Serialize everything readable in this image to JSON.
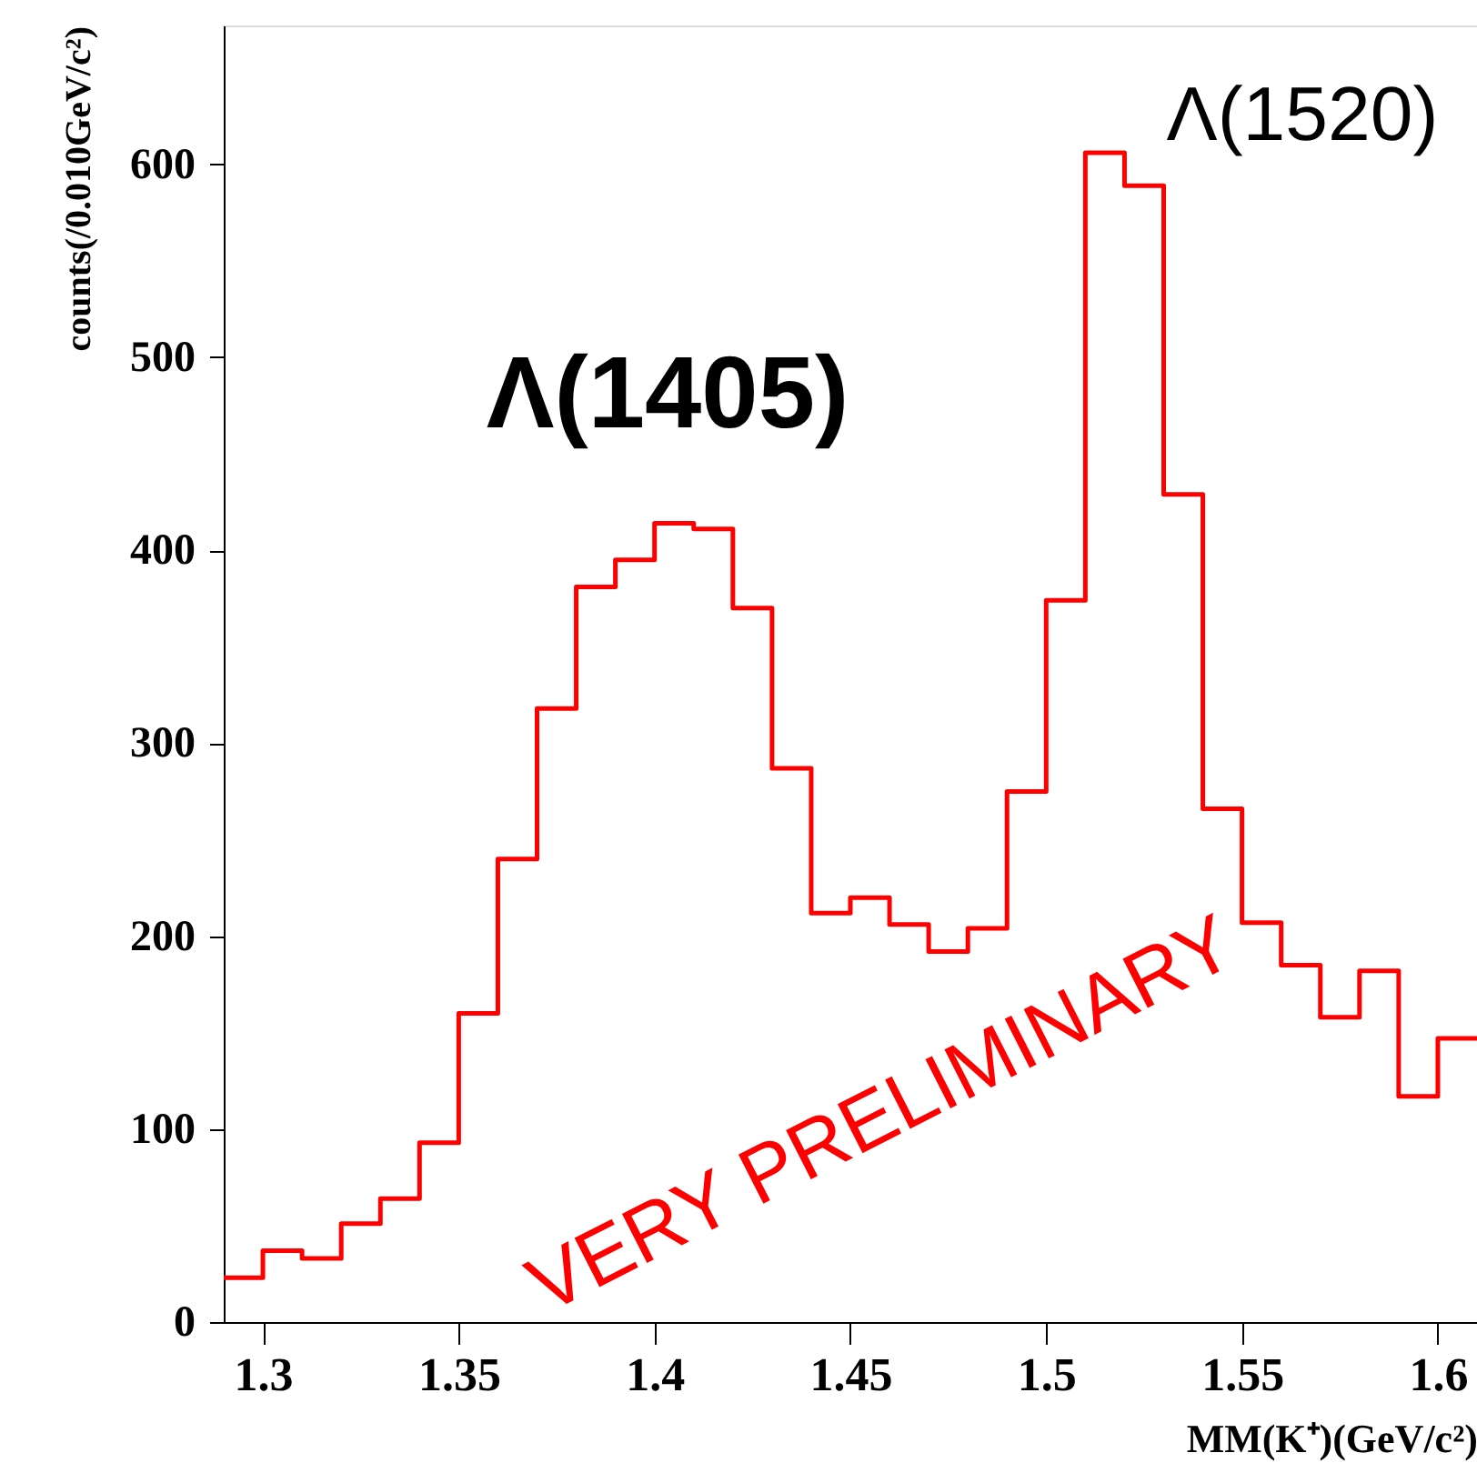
{
  "chart_data": {
    "type": "histogram",
    "xlabel": "MM(K⁺)(GeV/c²)",
    "ylabel": "counts(/0.010GeV/c²)",
    "bins": [
      1.29,
      1.3,
      1.31,
      1.32,
      1.33,
      1.34,
      1.35,
      1.36,
      1.37,
      1.38,
      1.39,
      1.4,
      1.41,
      1.42,
      1.43,
      1.44,
      1.45,
      1.46,
      1.47,
      1.48,
      1.49,
      1.5,
      1.51,
      1.52,
      1.53,
      1.54,
      1.55,
      1.56,
      1.57,
      1.58,
      1.59,
      1.6,
      1.61
    ],
    "values": [
      23,
      37,
      33,
      51,
      64,
      93,
      160,
      240,
      318,
      381,
      395,
      414,
      411,
      370,
      287,
      212,
      220,
      206,
      192,
      204,
      275,
      374,
      606,
      589,
      429,
      266,
      207,
      185,
      158,
      182,
      117,
      147
    ],
    "color": "#ff0000",
    "xlim": [
      1.29,
      1.61
    ],
    "xticks": [
      1.3,
      1.35,
      1.4,
      1.45,
      1.5,
      1.55,
      1.6
    ],
    "ylim": [
      0,
      672
    ],
    "yticks": [
      0,
      100,
      200,
      300,
      400,
      500,
      600
    ],
    "grid": false,
    "annotations": [
      "Λ(1405)",
      "Λ(1520)",
      "VERY PRELIMINARY"
    ]
  }
}
